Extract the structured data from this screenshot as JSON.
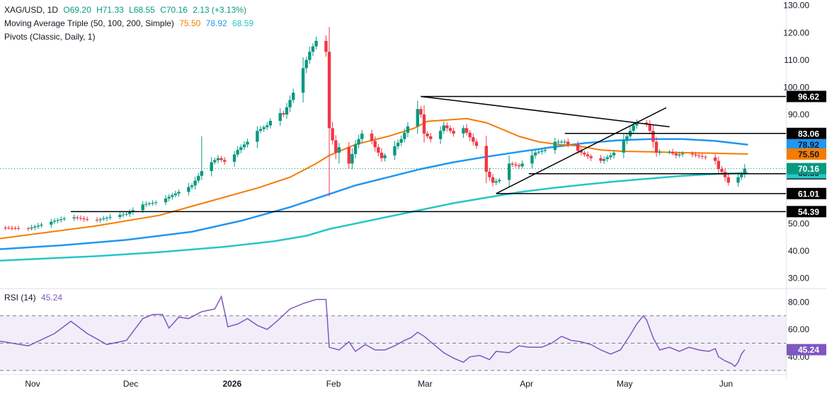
{
  "legend": {
    "symbol": "XAG/USD, 1D",
    "open": "O69.20",
    "high": "H71.33",
    "low": "L68.55",
    "close": "C70.16",
    "change": "2.13 (+3.13%)",
    "ma_title": "Moving Average Triple (50, 100, 200, Simple)",
    "ma50": "75.50",
    "ma100": "78.92",
    "ma200": "68.59",
    "pivots_title": "Pivots (Classic, Daily, 1)",
    "rsi_title": "RSI (14)",
    "rsi_value": "45.24"
  },
  "colors": {
    "up": "#089981",
    "down": "#f23645",
    "ma50": "#f57c00",
    "ma100": "#2196f3",
    "ma200": "#26c6c6",
    "rsi": "#7e57c2",
    "pivot": "#000000"
  },
  "chart_data": {
    "type": "candlestick",
    "y_axis_ticks": [
      "130.00",
      "120.00",
      "110.00",
      "100.00",
      "90.00",
      "80.00",
      "70.00",
      "60.00",
      "50.00",
      "40.00",
      "30.00"
    ],
    "ylim": [
      27,
      132
    ],
    "x_axis_labels": [
      {
        "label": "Nov",
        "day": 0
      },
      {
        "label": "Dec",
        "day": 30
      },
      {
        "label": "2026",
        "day": 61
      },
      {
        "label": "Feb",
        "day": 92
      },
      {
        "label": "Mar",
        "day": 120
      },
      {
        "label": "Apr",
        "day": 151
      },
      {
        "label": "May",
        "day": 181
      },
      {
        "label": "Jun",
        "day": 212
      }
    ],
    "close_anchors": [
      [
        -10,
        48.5
      ],
      [
        0,
        48.2
      ],
      [
        8,
        51
      ],
      [
        13,
        52.5
      ],
      [
        20,
        51
      ],
      [
        27,
        53
      ],
      [
        30,
        53.5
      ],
      [
        35,
        57
      ],
      [
        40,
        58
      ],
      [
        45,
        61
      ],
      [
        50,
        64
      ],
      [
        54,
        71
      ],
      [
        58,
        74
      ],
      [
        61,
        72
      ],
      [
        64,
        77
      ],
      [
        67,
        80
      ],
      [
        70,
        84
      ],
      [
        73,
        86
      ],
      [
        76,
        91
      ],
      [
        78,
        90
      ],
      [
        81,
        98
      ],
      [
        84,
        107
      ],
      [
        86,
        113
      ],
      [
        88,
        117
      ],
      [
        90,
        118.5
      ],
      [
        91,
        113
      ],
      [
        92,
        85
      ],
      [
        94,
        76
      ],
      [
        96,
        80
      ],
      [
        98,
        72
      ],
      [
        100,
        79
      ],
      [
        103,
        85
      ],
      [
        106,
        78
      ],
      [
        108,
        74
      ],
      [
        111,
        77
      ],
      [
        114,
        81
      ],
      [
        117,
        88
      ],
      [
        119,
        92
      ],
      [
        120,
        90
      ],
      [
        121,
        83
      ],
      [
        124,
        80
      ],
      [
        127,
        86
      ],
      [
        130,
        83
      ],
      [
        133,
        85
      ],
      [
        136,
        80
      ],
      [
        138,
        77
      ],
      [
        140,
        69
      ],
      [
        142,
        65
      ],
      [
        144,
        66
      ],
      [
        147,
        72
      ],
      [
        150,
        71
      ],
      [
        152,
        73
      ],
      [
        155,
        76
      ],
      [
        158,
        77
      ],
      [
        161,
        80
      ],
      [
        164,
        80
      ],
      [
        166,
        78
      ],
      [
        169,
        76
      ],
      [
        172,
        74
      ],
      [
        175,
        73
      ],
      [
        178,
        75
      ],
      [
        180,
        77
      ],
      [
        183,
        82
      ],
      [
        185,
        86
      ],
      [
        187,
        88
      ],
      [
        188,
        89
      ],
      [
        190,
        84
      ],
      [
        192,
        76
      ],
      [
        195,
        77
      ],
      [
        198,
        75
      ],
      [
        201,
        76
      ],
      [
        204,
        75
      ],
      [
        206,
        74.5
      ],
      [
        208,
        74
      ],
      [
        210,
        73
      ],
      [
        211,
        70
      ],
      [
        212,
        69
      ],
      [
        214,
        65
      ],
      [
        216,
        64
      ],
      [
        217,
        67
      ],
      [
        218,
        68
      ],
      [
        219,
        70.16
      ]
    ],
    "wick_spikes": [
      [
        53,
        82
      ],
      [
        95,
        72
      ],
      [
        92,
        60
      ],
      [
        99,
        70
      ]
    ],
    "ma50_points": [
      [
        -10,
        44.3
      ],
      [
        20,
        49
      ],
      [
        40,
        53
      ],
      [
        55,
        58
      ],
      [
        70,
        63
      ],
      [
        80,
        67
      ],
      [
        88,
        72
      ],
      [
        92,
        75
      ],
      [
        100,
        79
      ],
      [
        110,
        82
      ],
      [
        118,
        85
      ],
      [
        122,
        87.5
      ],
      [
        128,
        88
      ],
      [
        134,
        88.5
      ],
      [
        140,
        87
      ],
      [
        146,
        84
      ],
      [
        150,
        82
      ],
      [
        156,
        80
      ],
      [
        162,
        79
      ],
      [
        168,
        78.5
      ],
      [
        175,
        77
      ],
      [
        182,
        76.5
      ],
      [
        190,
        76.3
      ],
      [
        200,
        76
      ],
      [
        210,
        75.8
      ],
      [
        220,
        75.5
      ]
    ],
    "ma100_points": [
      [
        -10,
        40.5
      ],
      [
        10,
        42
      ],
      [
        30,
        44
      ],
      [
        50,
        47
      ],
      [
        65,
        51
      ],
      [
        80,
        56
      ],
      [
        90,
        60
      ],
      [
        100,
        64
      ],
      [
        110,
        67
      ],
      [
        120,
        70
      ],
      [
        130,
        72.5
      ],
      [
        140,
        74.5
      ],
      [
        150,
        76.3
      ],
      [
        160,
        78
      ],
      [
        170,
        79.5
      ],
      [
        180,
        80.5
      ],
      [
        190,
        81
      ],
      [
        200,
        81
      ],
      [
        210,
        80.3
      ],
      [
        220,
        78.92
      ]
    ],
    "ma200_points": [
      [
        -10,
        36.3
      ],
      [
        20,
        38
      ],
      [
        40,
        39.5
      ],
      [
        60,
        41.5
      ],
      [
        75,
        43.5
      ],
      [
        85,
        45.5
      ],
      [
        92,
        48
      ],
      [
        100,
        50
      ],
      [
        110,
        52.5
      ],
      [
        120,
        55
      ],
      [
        130,
        57.5
      ],
      [
        140,
        59.5
      ],
      [
        150,
        61.5
      ],
      [
        160,
        63
      ],
      [
        170,
        64.3
      ],
      [
        180,
        65.5
      ],
      [
        190,
        66.5
      ],
      [
        200,
        67.5
      ],
      [
        210,
        68.2
      ],
      [
        220,
        68.59
      ]
    ],
    "rsi_points": [
      [
        -10,
        52
      ],
      [
        0,
        48
      ],
      [
        8,
        57
      ],
      [
        13,
        66
      ],
      [
        18,
        57
      ],
      [
        24,
        49
      ],
      [
        30,
        52
      ],
      [
        35,
        68
      ],
      [
        38,
        71
      ],
      [
        41,
        71
      ],
      [
        43,
        61
      ],
      [
        46,
        69
      ],
      [
        49,
        68
      ],
      [
        53,
        73
      ],
      [
        57,
        75
      ],
      [
        59,
        84
      ],
      [
        61,
        62
      ],
      [
        64,
        64
      ],
      [
        67,
        68
      ],
      [
        70,
        63
      ],
      [
        73,
        60
      ],
      [
        76,
        66
      ],
      [
        80,
        75
      ],
      [
        84,
        79
      ],
      [
        88,
        82
      ],
      [
        91,
        82
      ],
      [
        92,
        47
      ],
      [
        95,
        45
      ],
      [
        98,
        51
      ],
      [
        100,
        44
      ],
      [
        103,
        49
      ],
      [
        106,
        45
      ],
      [
        109,
        45
      ],
      [
        112,
        48
      ],
      [
        115,
        52
      ],
      [
        117,
        54
      ],
      [
        119,
        58
      ],
      [
        121,
        55
      ],
      [
        124,
        49
      ],
      [
        127,
        43
      ],
      [
        130,
        39
      ],
      [
        133,
        36
      ],
      [
        135,
        40
      ],
      [
        138,
        41
      ],
      [
        141,
        38
      ],
      [
        143,
        44
      ],
      [
        147,
        43
      ],
      [
        150,
        48
      ],
      [
        153,
        47
      ],
      [
        157,
        47
      ],
      [
        160,
        50
      ],
      [
        163,
        55
      ],
      [
        166,
        52
      ],
      [
        169,
        51
      ],
      [
        172,
        49
      ],
      [
        175,
        45
      ],
      [
        178,
        42
      ],
      [
        181,
        45
      ],
      [
        184,
        56
      ],
      [
        186,
        64
      ],
      [
        188,
        70
      ],
      [
        189,
        67
      ],
      [
        191,
        54
      ],
      [
        193,
        45
      ],
      [
        196,
        47
      ],
      [
        199,
        44
      ],
      [
        202,
        47
      ],
      [
        205,
        45
      ],
      [
        208,
        44
      ],
      [
        210,
        46
      ],
      [
        211,
        40
      ],
      [
        213,
        37
      ],
      [
        215,
        35
      ],
      [
        216,
        33
      ],
      [
        217,
        36
      ],
      [
        218,
        42
      ],
      [
        219,
        45.24
      ]
    ],
    "rsi_levels": {
      "upper": 70,
      "middle": 50,
      "lower": 30,
      "ylim": [
        28,
        88
      ]
    },
    "rsi_ticks": [
      "80.00",
      "60.00",
      "40.00"
    ],
    "pivot_levels": [
      {
        "label": "96.62",
        "value": 96.62,
        "from_day": 120
      },
      {
        "label": "83.06",
        "value": 83.06,
        "from_day": 164
      },
      {
        "label": "68.28",
        "value": 68.28,
        "from_day": 153
      },
      {
        "label": "61.01",
        "value": 61.01,
        "from_day": 143
      },
      {
        "label": "54.39",
        "value": 54.39,
        "from_day": 13
      }
    ],
    "trendlines": [
      {
        "from": [
          120,
          96.62
        ],
        "to": [
          196,
          85.5
        ]
      },
      {
        "from": [
          143,
          61.0
        ],
        "to": [
          195,
          92.5
        ]
      }
    ],
    "last_price": {
      "label": "70.16",
      "value": 70.16
    },
    "value_badges": [
      {
        "label": "78.92",
        "value": 78.92,
        "color": "ma100"
      },
      {
        "label": "75.50",
        "value": 75.5,
        "color": "ma50"
      },
      {
        "label": "68.59",
        "value": 68.59,
        "color": "ma200"
      }
    ]
  }
}
